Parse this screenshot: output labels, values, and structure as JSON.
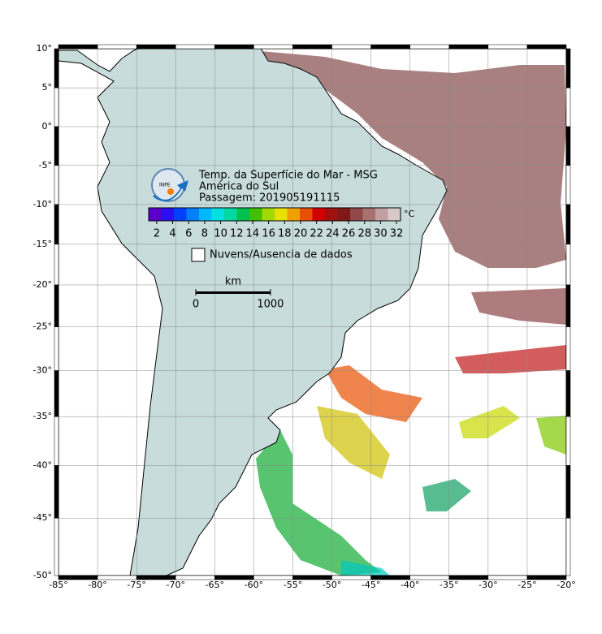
{
  "header": {
    "title": "Temp. da Superfície do Mar - MSG",
    "region": "América do Sul",
    "pass": "Passagem: 201905191115",
    "logo": "INPE"
  },
  "map": {
    "projection": "mercator",
    "xlim": [
      -85,
      -20
    ],
    "ylim": [
      -50,
      10
    ],
    "grid": true,
    "xticks": [
      {
        "value": -85,
        "label": "-85°"
      },
      {
        "value": -80,
        "label": "-80°"
      },
      {
        "value": -75,
        "label": "-75°"
      },
      {
        "value": -70,
        "label": "-70°"
      },
      {
        "value": -65,
        "label": "-65°"
      },
      {
        "value": -60,
        "label": "-60°"
      },
      {
        "value": -55,
        "label": "-55°"
      },
      {
        "value": -50,
        "label": "-50°"
      },
      {
        "value": -45,
        "label": "-45°"
      },
      {
        "value": -40,
        "label": "-40°"
      },
      {
        "value": -35,
        "label": "-35°"
      },
      {
        "value": -30,
        "label": "-30°"
      },
      {
        "value": -25,
        "label": "-25°"
      },
      {
        "value": -20,
        "label": "-20°"
      }
    ],
    "yticks": [
      {
        "value": 10,
        "label": "10°"
      },
      {
        "value": 5,
        "label": "5°"
      },
      {
        "value": 0,
        "label": "0°"
      },
      {
        "value": -5,
        "label": "-5°"
      },
      {
        "value": -10,
        "label": "-10°"
      },
      {
        "value": -15,
        "label": "-15°"
      },
      {
        "value": -20,
        "label": "-20°"
      },
      {
        "value": -25,
        "label": "-25°"
      },
      {
        "value": -30,
        "label": "-30°"
      },
      {
        "value": -35,
        "label": "-35°"
      },
      {
        "value": -40,
        "label": "-40°"
      },
      {
        "value": -45,
        "label": "-45°"
      },
      {
        "value": -50,
        "label": "-50°"
      }
    ]
  },
  "colorbar": {
    "unit": "°C",
    "lim": [
      1,
      32.5
    ],
    "ticks": [
      2,
      4,
      6,
      8,
      10,
      12,
      14,
      16,
      18,
      20,
      22,
      24,
      26,
      28,
      30,
      32
    ],
    "colors": [
      "#5a00c8",
      "#2a10f0",
      "#0040ff",
      "#0080ff",
      "#00b8ff",
      "#00e0e0",
      "#00d8a0",
      "#00c050",
      "#40c000",
      "#a0d800",
      "#e8e000",
      "#f0a000",
      "#e85000",
      "#d00000",
      "#a01010",
      "#801818",
      "#904848",
      "#a87070",
      "#c0a0a0",
      "#d8c8c8"
    ]
  },
  "legend": {
    "label": "Nuvens/Ausencia de dados"
  },
  "scale_bar": {
    "unit": "km",
    "ticks": [
      0,
      1000
    ],
    "lat": -20
  }
}
